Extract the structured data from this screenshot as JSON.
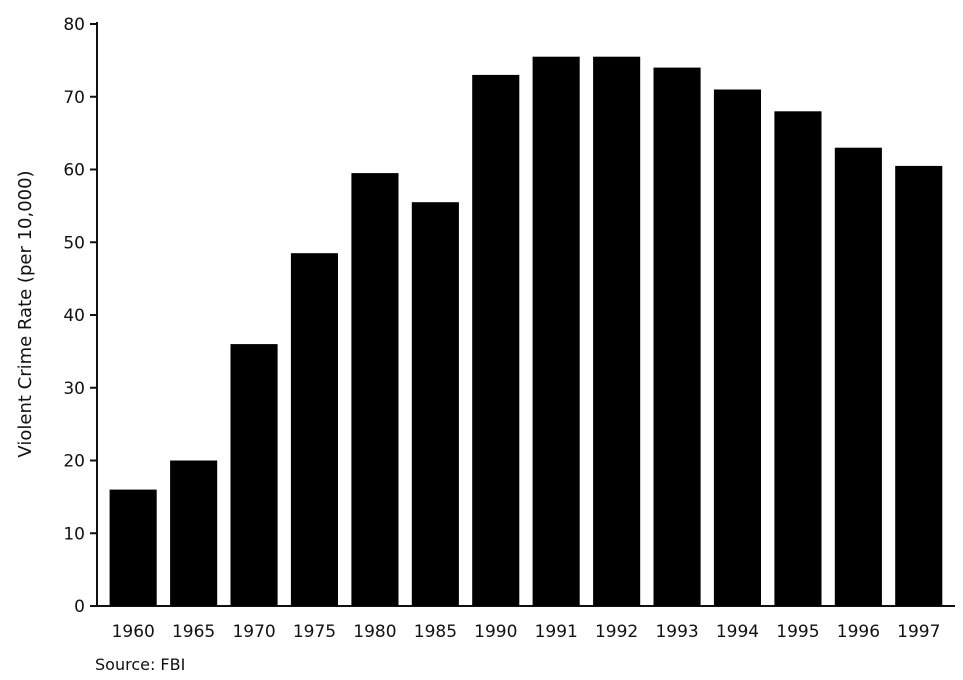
{
  "chart_data": {
    "type": "bar",
    "title": "",
    "xlabel": "",
    "ylabel": "Violent Crime Rate (per 10,000)",
    "categories": [
      "1960",
      "1965",
      "1970",
      "1975",
      "1980",
      "1985",
      "1990",
      "1991",
      "1992",
      "1993",
      "1994",
      "1995",
      "1996",
      "1997"
    ],
    "values": [
      16,
      20,
      36,
      48.5,
      59.5,
      55.5,
      73,
      75.5,
      75.5,
      74,
      71,
      68,
      63,
      60.5
    ],
    "ylim": [
      0,
      80
    ],
    "yticks": [
      0,
      10,
      20,
      30,
      40,
      50,
      60,
      70,
      80
    ],
    "grid": false,
    "bar_color": "#000000",
    "source": "Source: FBI"
  }
}
